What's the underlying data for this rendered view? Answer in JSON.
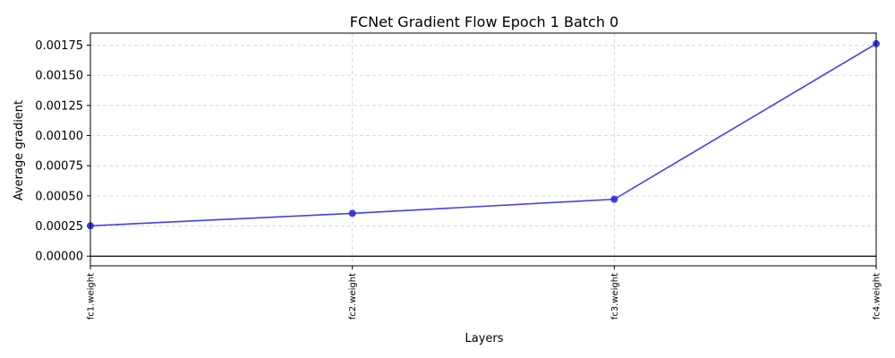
{
  "chart_data": {
    "type": "line",
    "title": "FCNet Gradient Flow Epoch 1 Batch 0",
    "xlabel": "Layers",
    "ylabel": "Average gradient",
    "categories": [
      "fc1.weight",
      "fc2.weight",
      "fc3.weight",
      "fc4.weight"
    ],
    "values": [
      0.000252,
      0.000355,
      0.000472,
      0.001762
    ],
    "ylim": [
      -8e-05,
      0.00185
    ],
    "yticks": [
      0.0,
      0.00025,
      0.0005,
      0.00075,
      0.001,
      0.00125,
      0.0015,
      0.00175
    ],
    "ytick_labels": [
      "0.00000",
      "0.00025",
      "0.00050",
      "0.00075",
      "0.00100",
      "0.00125",
      "0.00150",
      "0.00175"
    ],
    "hline": 0,
    "grid": true,
    "colors": {
      "line": "#4040f0",
      "marker": "#2a2ae8",
      "grid": "#d0d0d0",
      "hline": "#000000"
    }
  }
}
